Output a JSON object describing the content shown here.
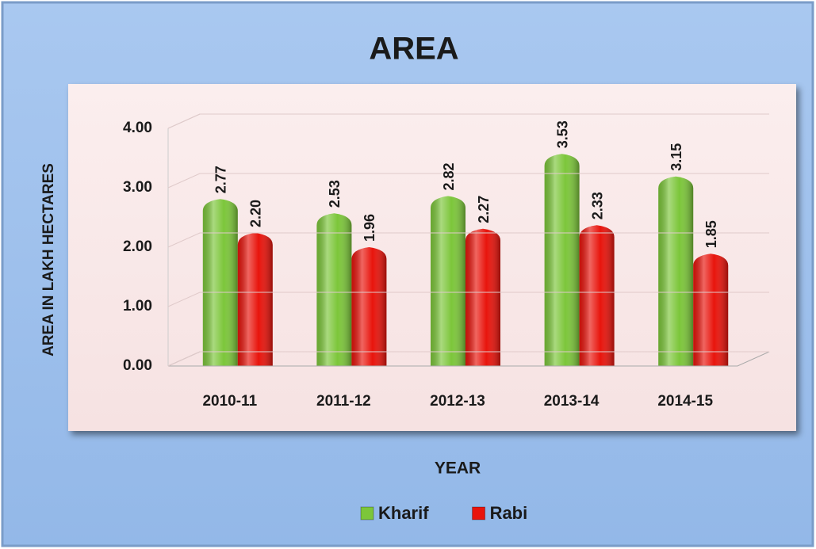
{
  "chart_data": {
    "type": "bar",
    "title": "AREA",
    "categories": [
      "2010-11",
      "2011-12",
      "2012-13",
      "2013-14",
      "2014-15"
    ],
    "series": [
      {
        "name": "Kharif",
        "color": "#7cc63a",
        "values": [
          2.77,
          2.53,
          2.82,
          3.53,
          3.15
        ],
        "value_labels": [
          "2.77",
          "2.53",
          "2.82",
          "3.53",
          "3.15"
        ]
      },
      {
        "name": "Rabi",
        "color": "#e8140c",
        "values": [
          2.2,
          1.96,
          2.27,
          2.33,
          1.85
        ],
        "value_labels": [
          "2.20",
          "1.96",
          "2.27",
          "2.33",
          "1.85"
        ]
      }
    ],
    "ylim": [
      0,
      4
    ],
    "yticks": [
      {
        "value": 0,
        "label": "0.00"
      },
      {
        "value": 1,
        "label": "1.00"
      },
      {
        "value": 2,
        "label": "2.00"
      },
      {
        "value": 3,
        "label": "3.00"
      },
      {
        "value": 4,
        "label": "4.00"
      }
    ],
    "ylabel": "AREA IN LAKH HECTARES",
    "xlabel": "YEAR",
    "grid": true,
    "legend": "bottom"
  }
}
